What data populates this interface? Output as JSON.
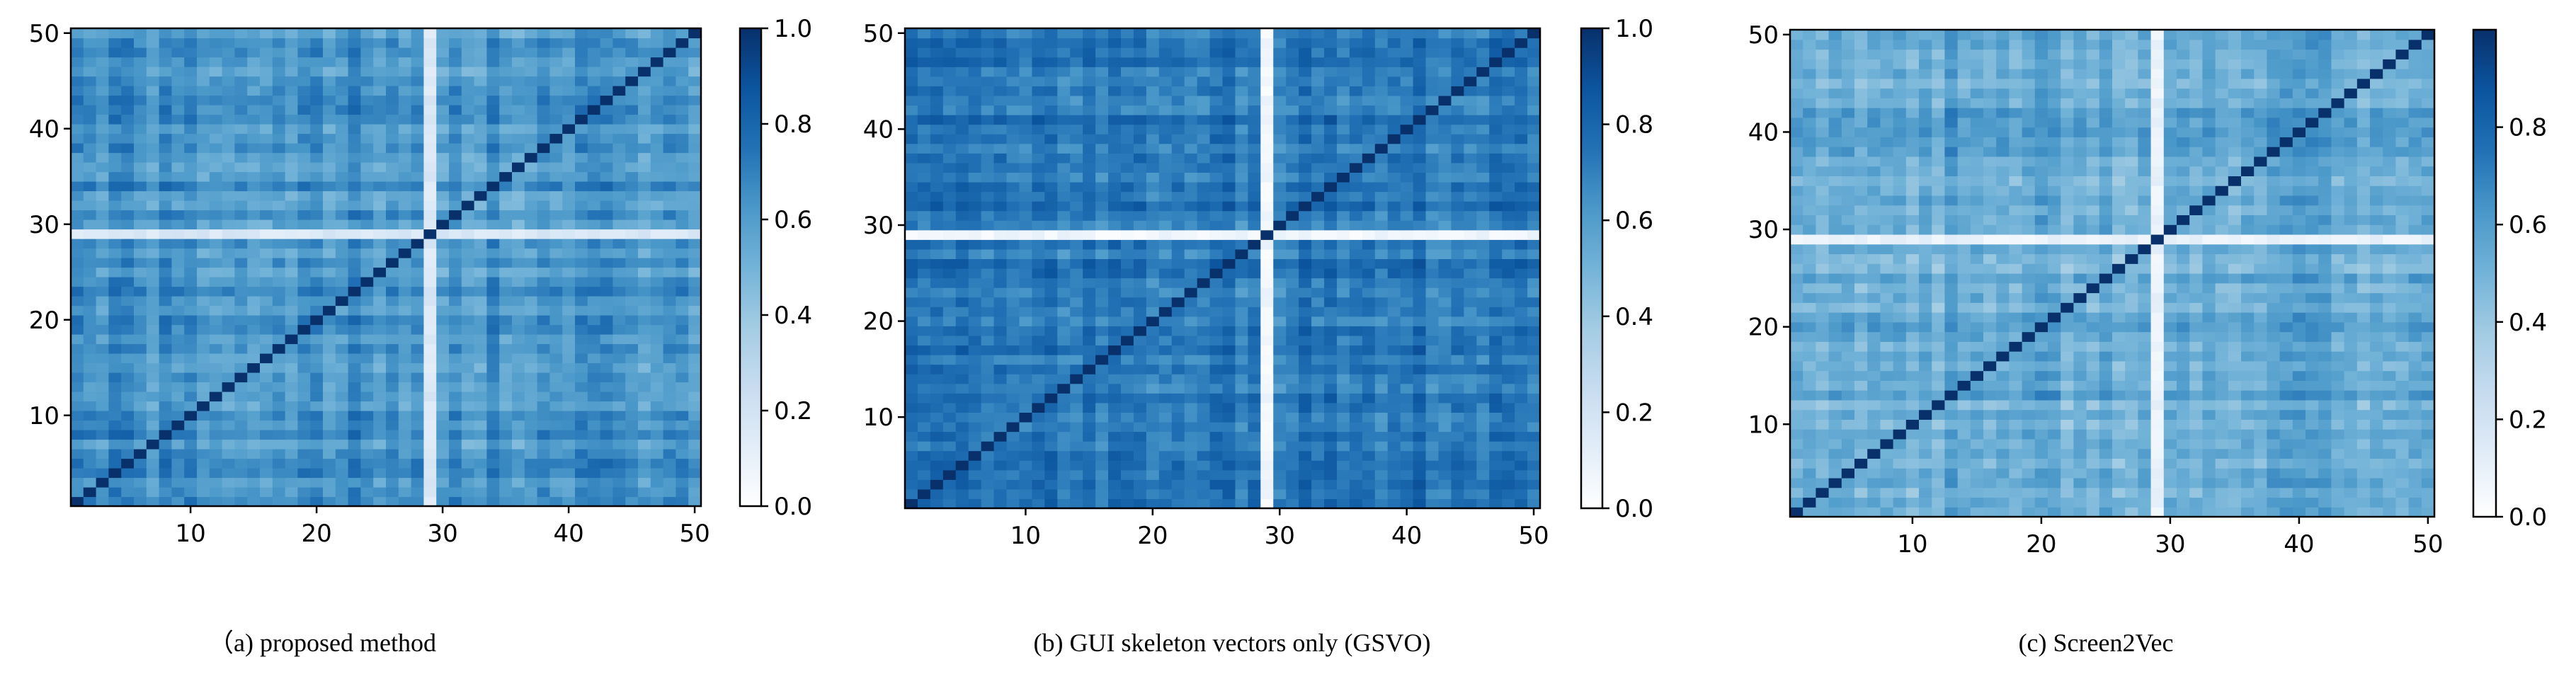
{
  "figure": {
    "colormap": [
      "#ffffff",
      "#e2edf8",
      "#c8dcf0",
      "#a3cce3",
      "#73b3d8",
      "#4a98c9",
      "#2271b5",
      "#0b559f",
      "#08306b"
    ]
  },
  "chart_data": [
    {
      "type": "heatmap",
      "caption": "（a) proposed method",
      "n": 50,
      "x_ticks": [
        10,
        20,
        30,
        40,
        50
      ],
      "y_ticks": [
        10,
        20,
        30,
        40,
        50
      ],
      "xlim": [
        0.5,
        50.5
      ],
      "ylim": [
        0.5,
        50.5
      ],
      "colorbar": {
        "range": [
          0.0,
          1.0
        ],
        "ticks": [
          0.0,
          0.2,
          0.4,
          0.6,
          0.8,
          1.0
        ],
        "tick_labels": [
          "0.0",
          "0.2",
          "0.4",
          "0.6",
          "0.8",
          "1.0"
        ]
      },
      "diagonal_value": 1.0,
      "off_diagonal_mean": 0.62,
      "off_diagonal_spread": 0.13,
      "low_similarity_index": 29,
      "low_similarity_value": 0.12
    },
    {
      "type": "heatmap",
      "caption": "(b) GUI skeleton vectors only (GSVO)",
      "n": 50,
      "x_ticks": [
        10,
        20,
        30,
        40,
        50
      ],
      "y_ticks": [
        10,
        20,
        30,
        40,
        50
      ],
      "xlim": [
        0.5,
        50.5
      ],
      "ylim": [
        0.5,
        50.5
      ],
      "colorbar": {
        "range": [
          0.0,
          1.0
        ],
        "ticks": [
          0.0,
          0.2,
          0.4,
          0.6,
          0.8,
          1.0
        ],
        "tick_labels": [
          "0.0",
          "0.2",
          "0.4",
          "0.6",
          "0.8",
          "1.0"
        ]
      },
      "diagonal_value": 1.0,
      "off_diagonal_mean": 0.74,
      "off_diagonal_spread": 0.1,
      "low_similarity_index": 29,
      "low_similarity_value": 0.02
    },
    {
      "type": "heatmap",
      "caption": "(c) Screen2Vec",
      "n": 50,
      "x_ticks": [
        10,
        20,
        30,
        40,
        50
      ],
      "y_ticks": [
        10,
        20,
        30,
        40,
        50
      ],
      "xlim": [
        0.5,
        50.5
      ],
      "ylim": [
        0.5,
        50.5
      ],
      "colorbar": {
        "range": [
          0.0,
          1.0
        ],
        "ticks": [
          0.0,
          0.2,
          0.4,
          0.6,
          0.8
        ],
        "tick_labels": [
          "0.0",
          "0.2",
          "0.4",
          "0.6",
          "0.8"
        ]
      },
      "diagonal_value": 1.0,
      "off_diagonal_mean": 0.55,
      "off_diagonal_spread": 0.12,
      "low_similarity_index": 29,
      "low_similarity_value": 0.05
    }
  ]
}
